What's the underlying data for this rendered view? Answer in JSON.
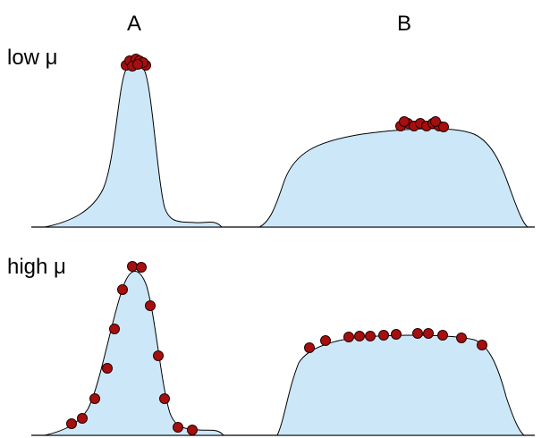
{
  "columns": {
    "a": "A",
    "b": "B"
  },
  "rows": {
    "low": "low μ",
    "high": "high μ"
  },
  "colors": {
    "fill": "#cce8f8",
    "dot": "#a50f0f"
  }
}
